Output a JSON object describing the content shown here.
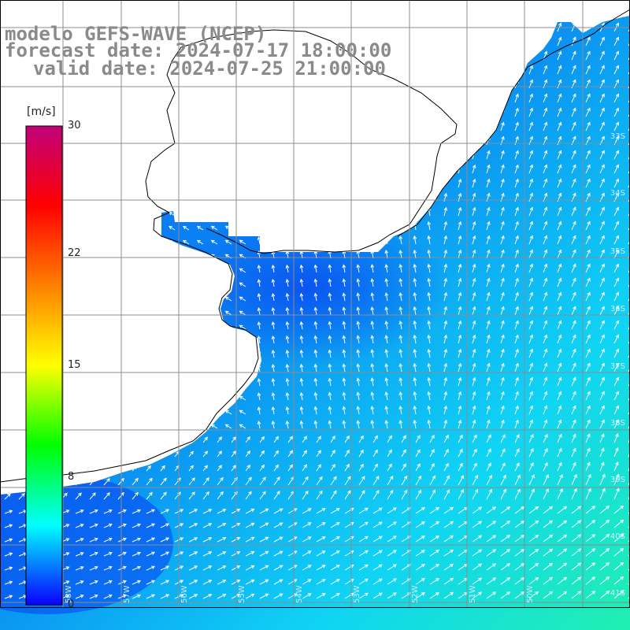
{
  "titles": {
    "model": "modelo GEFS-WAVE (NCEP)",
    "forecast": "forecast date: 2024-07-17 18:00:00",
    "valid": "valid date: 2024-07-25 21:00:00"
  },
  "colorbar": {
    "unit": "[m/s]",
    "ticks": [
      {
        "label": "30",
        "value": 30
      },
      {
        "label": "22",
        "value": 22
      },
      {
        "label": "15",
        "value": 15
      },
      {
        "label": "8",
        "value": 8
      },
      {
        "label": "0",
        "value": 0
      }
    ],
    "min": 0,
    "max": 30,
    "stops": [
      "#0a00ff",
      "#00ffff",
      "#00ff00",
      "#ffff00",
      "#ff8000",
      "#ff0000",
      "#c0007a"
    ]
  },
  "lat_labels": [
    "33S",
    "34S",
    "35S",
    "36S",
    "37S",
    "38S",
    "39S",
    "40S",
    "41S"
  ],
  "lon_labels": [
    "58W",
    "57W",
    "56W",
    "55W",
    "54W",
    "53W",
    "52W",
    "51W",
    "50W"
  ],
  "colors": {
    "land": "#ffffff",
    "coast": "#000000",
    "grid": "#8c8c8c",
    "arrow": "#ffffff",
    "title": "#8a8a8a"
  }
}
